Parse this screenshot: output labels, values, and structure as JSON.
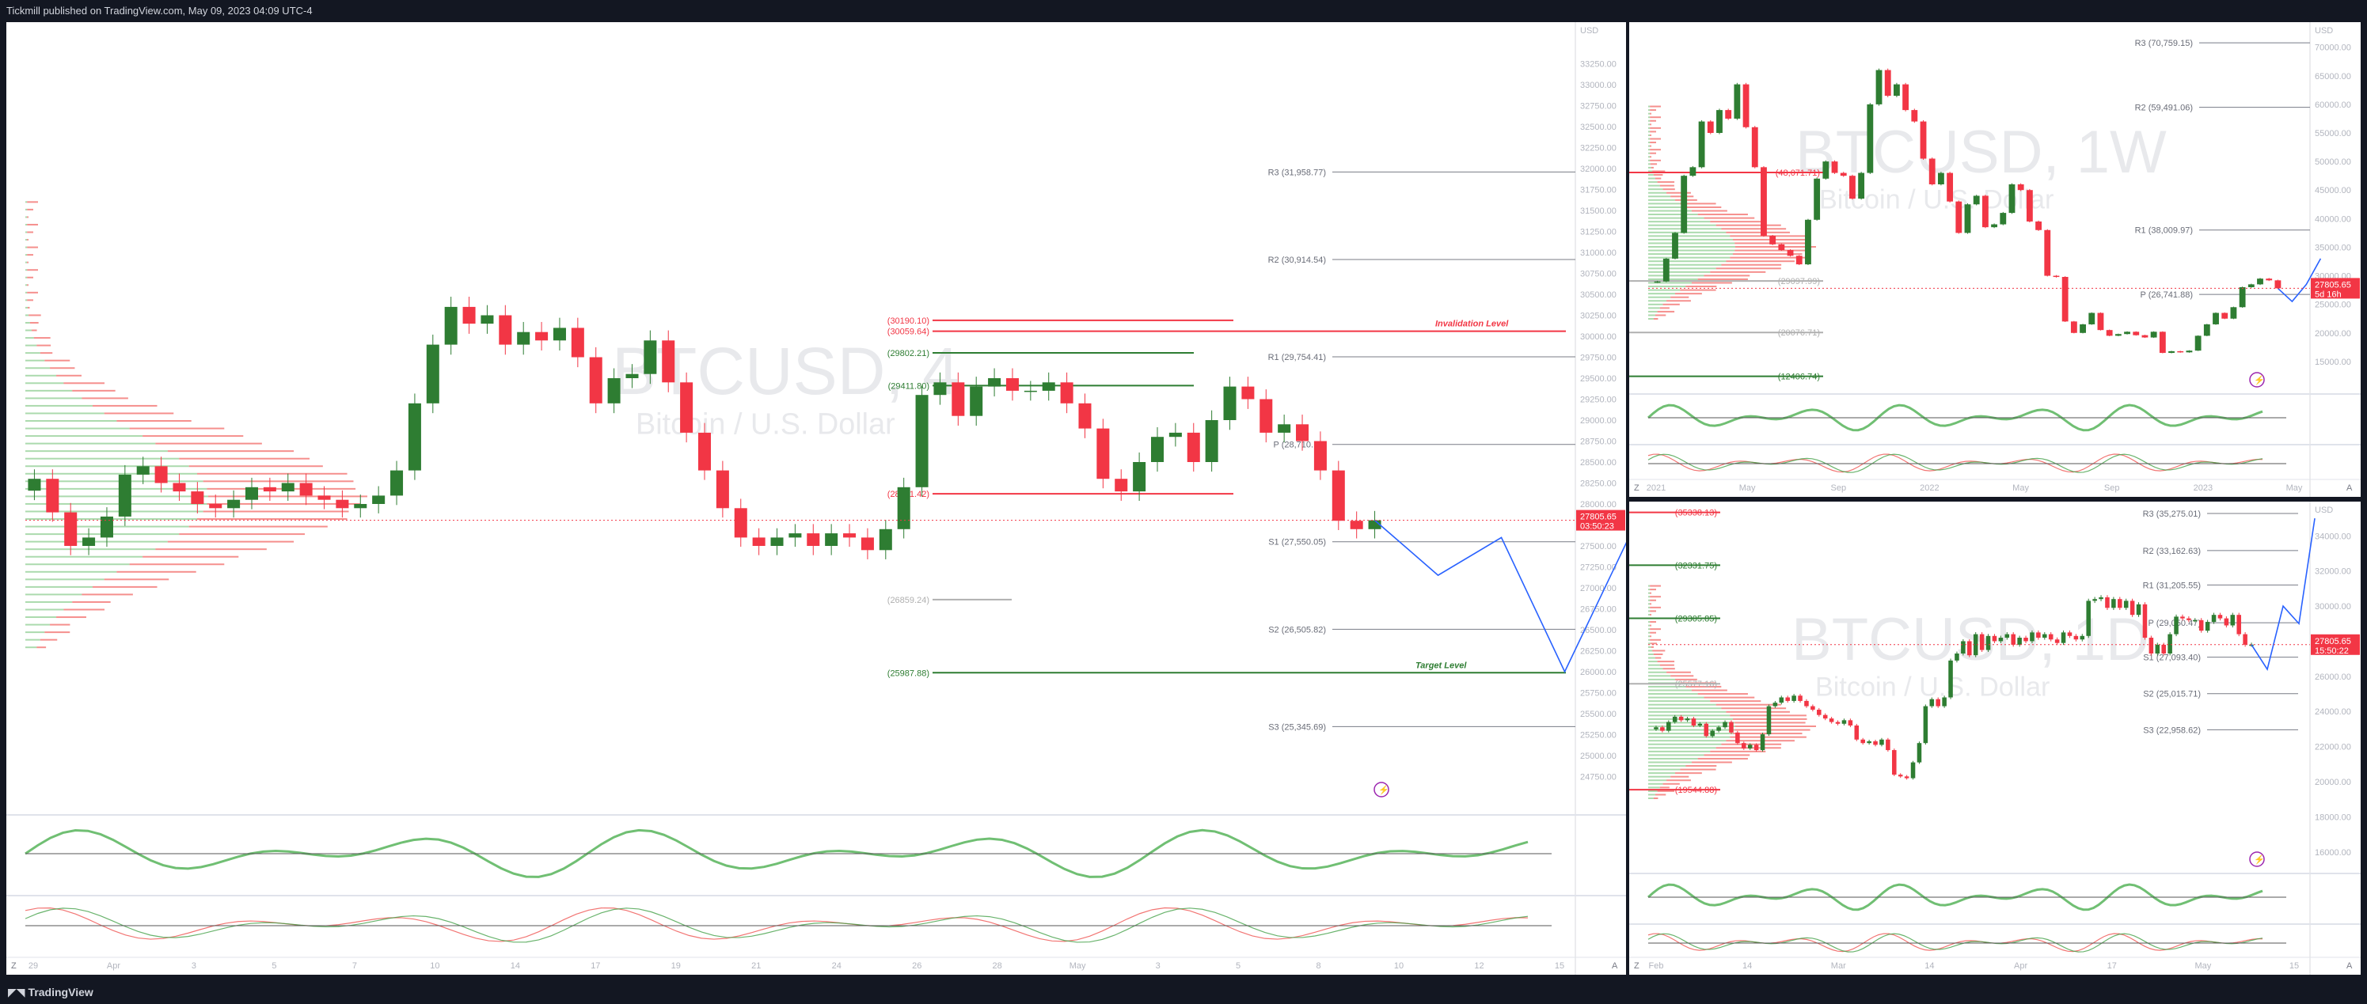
{
  "header": {
    "text": "Tickmill published on TradingView.com, May 09, 2023 04:09 UTC-4"
  },
  "footer": {
    "brand": "TradingView"
  },
  "icons": {
    "logo": "tradingview-logo-icon",
    "lightning": "lightning-icon",
    "zoom": "z-button-icon"
  },
  "colors": {
    "up": "#089981",
    "upGreen": "#2e7d32",
    "down": "#f23645",
    "bg": "#131722",
    "panel": "#ffffff",
    "line": "#787b86",
    "price": "#f23645"
  },
  "chart_data": [
    {
      "id": "main",
      "type": "candlestick",
      "watermark": {
        "symbol": "BTCUSD, 4",
        "name": "Bitcoin / U.S. Dollar"
      },
      "currency": "USD",
      "ylim": [
        24500,
        33500
      ],
      "y_ticks": [
        "33250.00",
        "33000.00",
        "32750.00",
        "32500.00",
        "32250.00",
        "32000.00",
        "31750.00",
        "31500.00",
        "31250.00",
        "31000.00",
        "30750.00",
        "30500.00",
        "30250.00",
        "30000.00",
        "29750.00",
        "29500.00",
        "29250.00",
        "29000.00",
        "28750.00",
        "28500.00",
        "28250.00",
        "28000.00",
        "27750.00",
        "27500.00",
        "27250.00",
        "27000.00",
        "26750.00",
        "26500.00",
        "26250.00",
        "26000.00",
        "25750.00",
        "25500.00",
        "25250.00",
        "25000.00",
        "24750.00"
      ],
      "x_ticks": [
        "29",
        "Apr",
        "3",
        "5",
        "7",
        "10",
        "14",
        "17",
        "19",
        "21",
        "24",
        "26",
        "28",
        "May",
        "3",
        "5",
        "8",
        "10",
        "12",
        "15"
      ],
      "last_price": {
        "value": "27805.65",
        "countdown": "03:50:23"
      },
      "pivots": [
        {
          "label": "R3 (31,958.77)",
          "value": 31958.77
        },
        {
          "label": "R2 (30,914.54)",
          "value": 30914.54
        },
        {
          "label": "R1 (29,754.41)",
          "value": 29754.41
        },
        {
          "label": "P (28,710.18)",
          "value": 28710.18
        },
        {
          "label": "S1 (27,550.05)",
          "value": 27550.05
        },
        {
          "label": "S2 (26,505.82)",
          "value": 26505.82
        },
        {
          "label": "S3 (25,345.69)",
          "value": 25345.69
        }
      ],
      "levels": [
        {
          "label": "(30190.10)",
          "value": 30190.1,
          "color": "#f23645"
        },
        {
          "label": "(30059.64)",
          "value": 30059.64,
          "color": "#f23645"
        },
        {
          "label": "(29802.21)",
          "value": 29802.21,
          "color": "#2e7d32"
        },
        {
          "label": "(29411.80)",
          "value": 29411.8,
          "color": "#2e7d32"
        },
        {
          "label": "(28121.42)",
          "value": 28121.42,
          "color": "#f23645"
        },
        {
          "label": "(26859.24)",
          "value": 26859.24,
          "color": "#b0b0b0"
        },
        {
          "label": "(25987.88)",
          "value": 25987.88,
          "color": "#2e7d32"
        }
      ],
      "annotations": [
        {
          "text": "Invalidation Level",
          "value": 30059.64,
          "color": "#f23645"
        },
        {
          "text": "Target Level",
          "value": 25987.88,
          "color": "#2e7d32"
        }
      ],
      "closes": [
        28300,
        27900,
        27500,
        27600,
        27850,
        28350,
        28450,
        28250,
        28150,
        28000,
        27950,
        28050,
        28200,
        28150,
        28250,
        28100,
        28050,
        27950,
        28000,
        28100,
        28400,
        29200,
        29900,
        30350,
        30150,
        30250,
        29900,
        30050,
        29950,
        30100,
        29750,
        29200,
        29500,
        29550,
        29950,
        29450,
        28850,
        28400,
        27950,
        27600,
        27500,
        27600,
        27650,
        27500,
        27650,
        27600,
        27450,
        27700,
        28200,
        29300,
        29450,
        29050,
        29400,
        29500,
        29350,
        29350,
        29450,
        29200,
        28900,
        28300,
        28150,
        28500,
        28800,
        28850,
        28500,
        29000,
        29400,
        29250,
        28850,
        28950,
        28750,
        28400,
        27800,
        27700,
        27805.65
      ],
      "projection": [
        27805.65,
        27150,
        27600,
        26000,
        27580
      ],
      "sub_ylim_rsi": [
        0,
        100
      ],
      "sub_ticks_rsi": [
        "100.00",
        "0.00"
      ],
      "sub_ticks_stoch": [
        "100.00",
        "50.00",
        "0.00"
      ]
    },
    {
      "id": "weekly",
      "type": "candlestick",
      "watermark": {
        "symbol": "BTCUSD, 1W",
        "name": "Bitcoin / U.S. Dollar"
      },
      "currency": "USD",
      "ylim": [
        10000,
        73000
      ],
      "y_ticks": [
        "70000.00",
        "65000.00",
        "60000.00",
        "55000.00",
        "50000.00",
        "45000.00",
        "40000.00",
        "35000.00",
        "30000.00",
        "25000.00",
        "20000.00",
        "15000.00"
      ],
      "x_ticks": [
        "2021",
        "May",
        "Sep",
        "2022",
        "May",
        "Sep",
        "2023",
        "May"
      ],
      "last_price": {
        "value": "27805.65",
        "countdown": "5d 16h"
      },
      "pivots": [
        {
          "label": "R3 (70,759.15)",
          "value": 70759.15
        },
        {
          "label": "R2 (59,491.06)",
          "value": 59491.06
        },
        {
          "label": "R1 (38,009.97)",
          "value": 38009.97
        },
        {
          "label": "P (26,741.88)",
          "value": 26741.88
        }
      ],
      "levels": [
        {
          "label": "(48,071.71)",
          "value": 48071.71,
          "color": "#f23645"
        },
        {
          "label": "(29097.99)",
          "value": 29097.99,
          "color": "#b0b0b0"
        },
        {
          "label": "(20076.71)",
          "value": 20076.71,
          "color": "#b0b0b0"
        },
        {
          "label": "(12406.74)",
          "value": 12406.74,
          "color": "#2e7d32"
        }
      ],
      "closes": [
        29000,
        33000,
        37500,
        47500,
        49000,
        57000,
        55000,
        59000,
        57500,
        63500,
        56000,
        49000,
        37000,
        35500,
        34500,
        33500,
        32000,
        39800,
        47000,
        50000,
        48000,
        47500,
        43500,
        48000,
        60000,
        66000,
        61500,
        63500,
        59000,
        57000,
        50500,
        46000,
        48000,
        43000,
        37500,
        42500,
        44000,
        38500,
        39000,
        41000,
        46000,
        45000,
        39500,
        38000,
        30000,
        29800,
        22000,
        20000,
        21500,
        23500,
        20500,
        19500,
        19800,
        20200,
        19600,
        19200,
        20200,
        16500,
        16800,
        16600,
        16900,
        19500,
        21500,
        23500,
        22500,
        24500,
        28000,
        28500,
        29500,
        29200,
        27805.65
      ],
      "projection": [
        27805.65,
        25500,
        28500,
        33000
      ]
    },
    {
      "id": "daily",
      "type": "candlestick",
      "watermark": {
        "symbol": "BTCUSD, 1D",
        "name": "Bitcoin / U.S. Dollar"
      },
      "currency": "USD",
      "ylim": [
        15000,
        35500
      ],
      "y_ticks": [
        "34000.00",
        "32000.00",
        "30000.00",
        "28000.00",
        "26000.00",
        "24000.00",
        "22000.00",
        "20000.00",
        "18000.00",
        "16000.00"
      ],
      "x_ticks": [
        "Feb",
        "14",
        "Mar",
        "14",
        "Apr",
        "17",
        "May",
        "15"
      ],
      "last_price": {
        "value": "27805.65",
        "countdown": "15:50:22"
      },
      "pivots": [
        {
          "label": "R3 (35,275.01)",
          "value": 35275.01
        },
        {
          "label": "R2 (33,162.63)",
          "value": 33162.63
        },
        {
          "label": "R1 (31,205.55)",
          "value": 31205.55
        },
        {
          "label": "P (29,050.47)",
          "value": 29050.47
        },
        {
          "label": "S1 (27,093.40)",
          "value": 27093.4
        },
        {
          "label": "S2 (25,015.71)",
          "value": 25015.71
        },
        {
          "label": "S3 (22,958.62)",
          "value": 22958.62
        }
      ],
      "levels": [
        {
          "label": "(35338.13)",
          "value": 35338.13,
          "color": "#f23645"
        },
        {
          "label": "(32331.75)",
          "value": 32331.75,
          "color": "#2e7d32"
        },
        {
          "label": "(29305.85)",
          "value": 29305.85,
          "color": "#2e7d32"
        },
        {
          "label": "(25577.16)",
          "value": 25577.16,
          "color": "#b0b0b0"
        },
        {
          "label": "(19544.88)",
          "value": 19544.88,
          "color": "#f23645"
        }
      ],
      "closes": [
        23100,
        22900,
        23400,
        23700,
        23500,
        23600,
        23200,
        23300,
        22600,
        22900,
        23100,
        23400,
        22800,
        22200,
        21900,
        22100,
        21800,
        22700,
        24300,
        24500,
        24800,
        24600,
        24900,
        24600,
        24300,
        24100,
        23800,
        23600,
        23400,
        23300,
        23500,
        23200,
        22400,
        22200,
        22300,
        22100,
        22400,
        21800,
        20400,
        20300,
        20200,
        21100,
        22200,
        24300,
        24700,
        24300,
        24800,
        26900,
        27300,
        28000,
        27200,
        28400,
        27500,
        28300,
        28000,
        28200,
        28400,
        27800,
        28200,
        28000,
        28500,
        28200,
        28400,
        28100,
        27900,
        28500,
        28300,
        28100,
        28300,
        30300,
        30400,
        30500,
        29900,
        30400,
        29900,
        30300,
        29500,
        30100,
        28200,
        27300,
        27800,
        27300,
        28400,
        29400,
        29300,
        29200,
        29200,
        28600,
        29100,
        29500,
        29300,
        28900,
        29500,
        28400,
        27800,
        27805.65
      ],
      "projection": [
        27805.65,
        26400,
        30000,
        29000,
        35000
      ]
    }
  ]
}
